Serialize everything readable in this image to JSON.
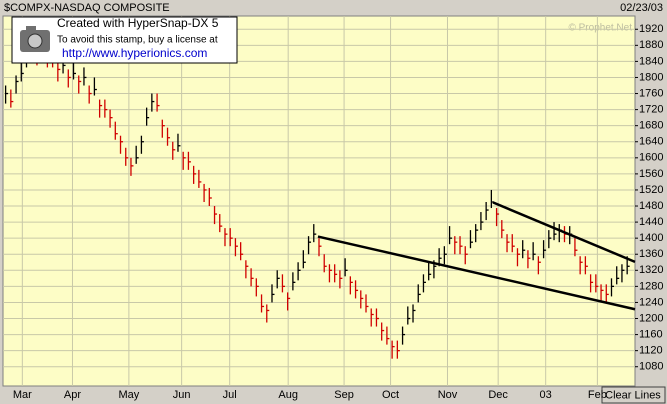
{
  "chart_data": {
    "type": "ohlc",
    "title": "$COMPX-NASDAQ COMPOSITE",
    "date": "02/23/03",
    "source": "© Prophet.Net",
    "watermark": {
      "line1": "Created with HyperSnap-DX 5",
      "line2": "To avoid this stamp, buy a license at",
      "line3": "http://www.hyperionics.com"
    },
    "button": "Clear Lines",
    "up_color": "#000000",
    "down_color": "#d00000",
    "grid": true,
    "xlim": [
      -0.5,
      120.5
    ],
    "xticks": [
      {
        "value": 3.2,
        "label": "Mar"
      },
      {
        "value": 12.8,
        "label": "Apr"
      },
      {
        "value": 23.6,
        "label": "May"
      },
      {
        "value": 33.7,
        "label": "Jun"
      },
      {
        "value": 42.9,
        "label": "Jul"
      },
      {
        "value": 54.1,
        "label": "Aug"
      },
      {
        "value": 64.8,
        "label": "Sep"
      },
      {
        "value": 73.7,
        "label": "Oct"
      },
      {
        "value": 84.6,
        "label": "Nov"
      },
      {
        "value": 94.3,
        "label": "Dec"
      },
      {
        "value": 103.4,
        "label": "03"
      },
      {
        "value": 113.3,
        "label": "Feb"
      }
    ],
    "ylim": [
      1032,
      1953
    ],
    "yticks": [
      1080,
      1120,
      1160,
      1200,
      1240,
      1280,
      1320,
      1360,
      1400,
      1440,
      1480,
      1520,
      1560,
      1600,
      1640,
      1680,
      1720,
      1760,
      1800,
      1840,
      1880,
      1920
    ],
    "high": [
      1780,
      1770,
      1805,
      1835,
      1870,
      1900,
      1875,
      1905,
      1870,
      1870,
      1835,
      1855,
      1820,
      1840,
      1805,
      1825,
      1780,
      1800,
      1745,
      1745,
      1720,
      1690,
      1655,
      1625,
      1600,
      1630,
      1655,
      1725,
      1760,
      1760,
      1695,
      1675,
      1640,
      1660,
      1615,
      1615,
      1580,
      1570,
      1535,
      1525,
      1480,
      1460,
      1425,
      1425,
      1400,
      1390,
      1345,
      1325,
      1300,
      1260,
      1235,
      1285,
      1320,
      1310,
      1265,
      1315,
      1340,
      1370,
      1405,
      1435,
      1400,
      1360,
      1335,
      1335,
      1320,
      1350,
      1305,
      1295,
      1270,
      1260,
      1225,
      1225,
      1190,
      1180,
      1145,
      1145,
      1180,
      1230,
      1235,
      1285,
      1310,
      1340,
      1345,
      1375,
      1380,
      1430,
      1405,
      1405,
      1380,
      1420,
      1435,
      1465,
      1490,
      1520,
      1475,
      1445,
      1410,
      1410,
      1375,
      1395,
      1370,
      1390,
      1355,
      1395,
      1420,
      1440,
      1435,
      1430,
      1430,
      1400,
      1355,
      1355,
      1310,
      1310,
      1285,
      1285,
      1300,
      1330,
      1335,
      1355
    ],
    "low": [
      1735,
      1725,
      1760,
      1790,
      1825,
      1855,
      1830,
      1860,
      1825,
      1825,
      1790,
      1810,
      1775,
      1795,
      1760,
      1780,
      1735,
      1755,
      1700,
      1700,
      1675,
      1645,
      1610,
      1580,
      1555,
      1585,
      1610,
      1680,
      1715,
      1715,
      1650,
      1630,
      1595,
      1615,
      1570,
      1570,
      1535,
      1525,
      1490,
      1480,
      1435,
      1415,
      1380,
      1380,
      1355,
      1345,
      1300,
      1280,
      1255,
      1215,
      1190,
      1240,
      1275,
      1265,
      1220,
      1270,
      1295,
      1325,
      1360,
      1390,
      1355,
      1315,
      1290,
      1290,
      1275,
      1305,
      1260,
      1250,
      1225,
      1215,
      1180,
      1180,
      1145,
      1135,
      1100,
      1100,
      1135,
      1185,
      1190,
      1240,
      1265,
      1295,
      1300,
      1330,
      1335,
      1385,
      1360,
      1360,
      1335,
      1375,
      1390,
      1420,
      1445,
      1475,
      1430,
      1400,
      1365,
      1365,
      1330,
      1350,
      1325,
      1345,
      1310,
      1350,
      1375,
      1395,
      1390,
      1390,
      1385,
      1355,
      1310,
      1310,
      1265,
      1265,
      1240,
      1240,
      1255,
      1285,
      1290,
      1310
    ],
    "close": [
      1760,
      1740,
      1790,
      1810,
      1850,
      1870,
      1860,
      1880,
      1850,
      1840,
      1820,
      1830,
      1800,
      1810,
      1790,
      1800,
      1760,
      1770,
      1730,
      1720,
      1700,
      1660,
      1640,
      1600,
      1580,
      1600,
      1640,
      1700,
      1740,
      1730,
      1680,
      1650,
      1620,
      1630,
      1600,
      1590,
      1560,
      1540,
      1520,
      1500,
      1460,
      1430,
      1410,
      1400,
      1380,
      1360,
      1330,
      1300,
      1280,
      1230,
      1220,
      1260,
      1300,
      1280,
      1250,
      1290,
      1320,
      1340,
      1390,
      1410,
      1380,
      1330,
      1320,
      1310,
      1300,
      1320,
      1290,
      1270,
      1250,
      1230,
      1210,
      1200,
      1170,
      1150,
      1130,
      1120,
      1160,
      1200,
      1220,
      1260,
      1290,
      1310,
      1330,
      1350,
      1360,
      1400,
      1390,
      1380,
      1360,
      1390,
      1420,
      1440,
      1470,
      1490,
      1460,
      1420,
      1390,
      1380,
      1360,
      1370,
      1350,
      1360,
      1340,
      1370,
      1400,
      1410,
      1420,
      1410,
      1410,
      1370,
      1340,
      1330,
      1290,
      1280,
      1270,
      1260,
      1280,
      1300,
      1320,
      1330
    ],
    "trendlines": [
      {
        "points": [
          [
            59.8,
            1404
          ],
          [
            120.5,
            1223
          ]
        ]
      },
      {
        "points": [
          [
            93.3,
            1489
          ],
          [
            120.5,
            1341
          ]
        ]
      }
    ]
  }
}
